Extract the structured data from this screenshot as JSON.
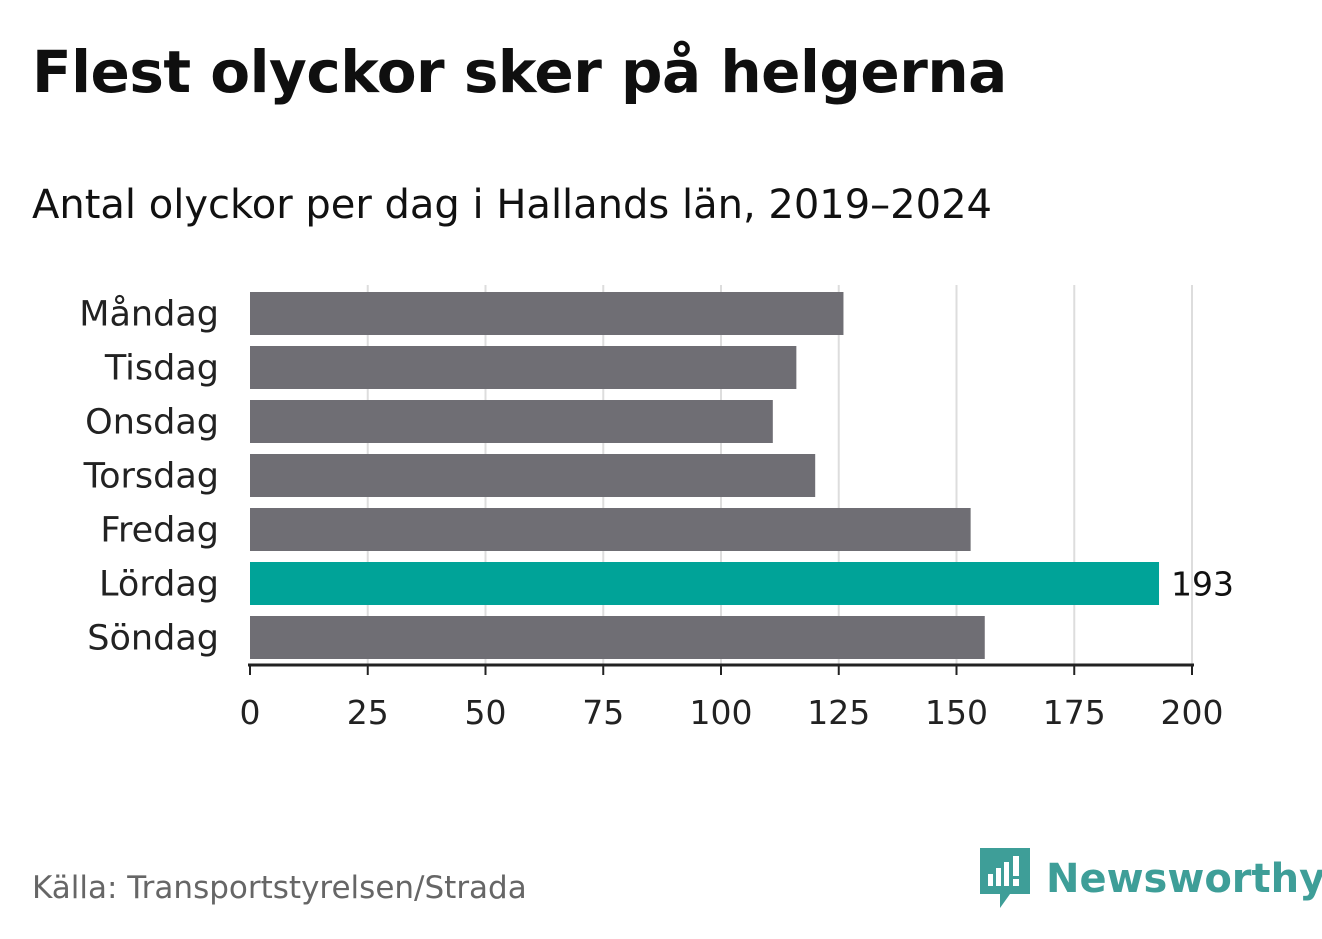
{
  "title": "Flest olyckor sker på helgerna",
  "subtitle": "Antal olyckor per dag i Hallands län, 2019–2024",
  "source": "Källa: Transportstyrelsen/Strada",
  "brand": {
    "name": "Newsworthy",
    "icon": "newsworthy-logo-icon",
    "color": "#3e9e98"
  },
  "colors": {
    "default_bar": "#6f6e74",
    "highlight_bar": "#00a398",
    "grid": "#dddddd",
    "axis": "#222222"
  },
  "chart_data": {
    "type": "bar",
    "orientation": "horizontal",
    "categories": [
      "Måndag",
      "Tisdag",
      "Onsdag",
      "Torsdag",
      "Fredag",
      "Lördag",
      "Söndag"
    ],
    "values": [
      126,
      116,
      111,
      120,
      153,
      193,
      156
    ],
    "highlight": "Lördag",
    "data_labels": [
      {
        "category": "Lördag",
        "label": "193"
      }
    ],
    "xticks": [
      "0",
      "25",
      "50",
      "75",
      "100",
      "125",
      "150",
      "175",
      "200"
    ],
    "xlim": [
      0,
      200
    ],
    "grid": true
  }
}
